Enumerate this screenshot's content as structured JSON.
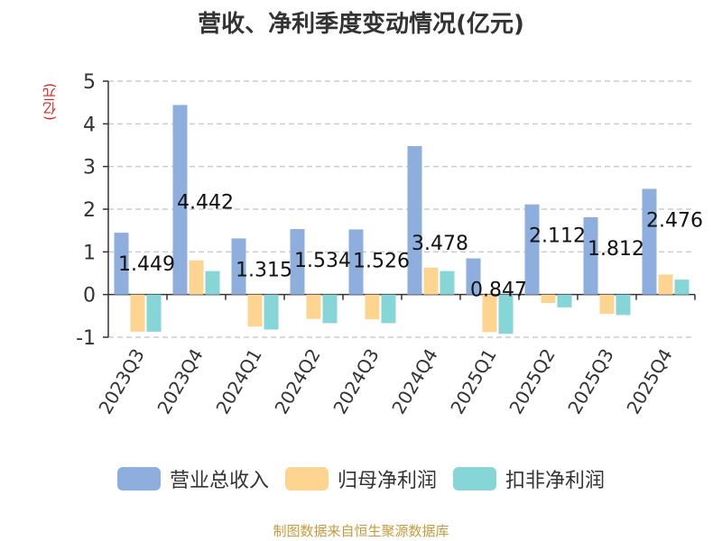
{
  "chart_data": {
    "type": "bar",
    "title": "营收、净利季度变动情况(亿元)",
    "ylabel": "(亿元)",
    "ylim": [
      -1,
      5
    ],
    "yticks": [
      -1,
      0,
      1,
      2,
      3,
      4,
      5
    ],
    "grid": true,
    "legend_position": "bottom",
    "categories": [
      "2023Q3",
      "2023Q4",
      "2024Q1",
      "2024Q2",
      "2024Q3",
      "2024Q4",
      "2025Q1",
      "2025Q2",
      "2025Q3",
      "2025Q4"
    ],
    "series": [
      {
        "name": "营业总收入",
        "color": "#8eaedd",
        "values": [
          1.449,
          4.442,
          1.315,
          1.534,
          1.526,
          3.478,
          0.847,
          2.112,
          1.812,
          2.476
        ],
        "labels": [
          "1.449",
          "4.442",
          "1.315",
          "1.534",
          "1.526",
          "3.478",
          "0.847",
          "2.112",
          "1.812",
          "2.476"
        ]
      },
      {
        "name": "归母净利润",
        "color": "#fdd490",
        "values": [
          -0.87,
          0.8,
          -0.75,
          -0.57,
          -0.58,
          0.63,
          -0.88,
          -0.2,
          -0.45,
          0.47
        ]
      },
      {
        "name": "扣非净利润",
        "color": "#86d6d8",
        "values": [
          -0.87,
          0.55,
          -0.82,
          -0.67,
          -0.67,
          0.55,
          -0.92,
          -0.3,
          -0.48,
          0.35
        ]
      }
    ]
  },
  "source_text": "制图数据来自恒生聚源数据库"
}
